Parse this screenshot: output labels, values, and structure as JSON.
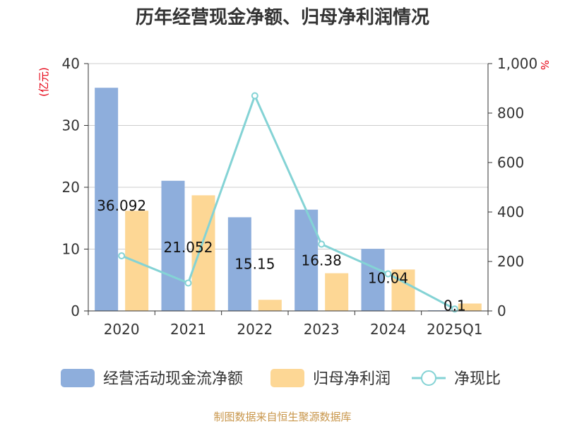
{
  "chart_data": {
    "type": "bar",
    "title": "历年经营现金净额、归母净利润情况",
    "categories": [
      "2020",
      "2021",
      "2022",
      "2023",
      "2024",
      "2025Q1"
    ],
    "series": [
      {
        "name": "经营活动现金流净额",
        "type": "bar",
        "axis": "left",
        "color": "#8eaedc",
        "values": [
          36.092,
          21.052,
          15.15,
          16.38,
          10.04,
          0.1
        ],
        "labels": [
          "36.092",
          "21.052",
          "15.15",
          "16.38",
          "10.04",
          "0.1"
        ]
      },
      {
        "name": "归母净利润",
        "type": "bar",
        "axis": "left",
        "color": "#fdd795",
        "values": [
          16.2,
          18.7,
          1.8,
          6.1,
          6.7,
          1.2
        ]
      },
      {
        "name": "净现比",
        "type": "line",
        "axis": "right",
        "color": "#84d3d5",
        "values": [
          223,
          113,
          870,
          270,
          150,
          8
        ]
      }
    ],
    "y_left": {
      "unit": "(亿元)",
      "ylim": [
        0,
        40
      ],
      "ticks": [
        "0",
        "10",
        "20",
        "30",
        "40"
      ]
    },
    "y_right": {
      "unit": "%",
      "ylim": [
        0,
        1000
      ],
      "ticks": [
        "0",
        "200",
        "400",
        "600",
        "800",
        "1,000"
      ]
    },
    "grid": true,
    "legend_position": "bottom"
  },
  "source": "制图数据来自恒生聚源数据库",
  "colors": {
    "grid": "#cccccc",
    "axis": "#333333",
    "unit": "#e60012",
    "source": "#c8964b"
  }
}
